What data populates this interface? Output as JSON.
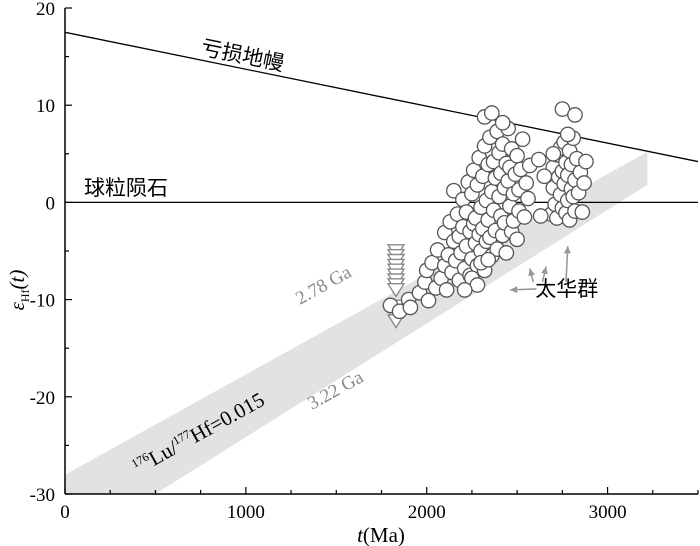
{
  "chart_data": {
    "type": "scatter",
    "xlim": [
      0,
      3500
    ],
    "ylim": [
      -30,
      20
    ],
    "x_ticks": [
      0,
      1000,
      2000,
      3000
    ],
    "y_ticks": [
      -30,
      -20,
      -10,
      0,
      10,
      20
    ],
    "tick_labels_x": [
      "0",
      "1000",
      "2000",
      "3000"
    ],
    "tick_labels_y": [
      "-30",
      "-20",
      "-10",
      "0",
      "10",
      "20"
    ],
    "xlabel": {
      "var": "t",
      "unit": "(Ma)"
    },
    "ylabel": {
      "sym": "ε",
      "sub": "Hf",
      "arg": "(t)"
    },
    "grid": false,
    "reference_lines": [
      {
        "name": "亏损地幔",
        "points": [
          [
            0,
            17.5
          ],
          [
            3500,
            4.2
          ]
        ]
      },
      {
        "name": "球粒陨石",
        "points": [
          [
            0,
            0
          ],
          [
            3500,
            0
          ]
        ]
      }
    ],
    "band": {
      "label_parts": [
        "176",
        "Lu/",
        "177",
        "Hf=0.015"
      ],
      "upper_label": "2.78 Ga",
      "lower_label": "3.22 Ga",
      "upper_edge": [
        [
          0,
          -28.0
        ],
        [
          3220,
          5.2
        ]
      ],
      "lower_edge": [
        [
          500,
          -30.0
        ],
        [
          3220,
          1.8
        ]
      ],
      "color": "#e2e2e2"
    },
    "series": [
      {
        "name": "太华群",
        "marker": "circle",
        "points": [
          [
            1800,
            -10.6
          ],
          [
            1850,
            -11.2
          ],
          [
            1900,
            -10.0
          ],
          [
            1910,
            -10.8
          ],
          [
            1960,
            -9.3
          ],
          [
            1990,
            -8.2
          ],
          [
            2000,
            -7.0
          ],
          [
            2010,
            -10.1
          ],
          [
            2030,
            -6.2
          ],
          [
            2050,
            -8.8
          ],
          [
            2060,
            -4.9
          ],
          [
            2080,
            -7.8
          ],
          [
            2100,
            -3.1
          ],
          [
            2100,
            -6.5
          ],
          [
            2110,
            -9.0
          ],
          [
            2120,
            -5.4
          ],
          [
            2130,
            -2.0
          ],
          [
            2140,
            -7.2
          ],
          [
            2150,
            -4.0
          ],
          [
            2150,
            1.2
          ],
          [
            2160,
            -6.0
          ],
          [
            2170,
            -1.2
          ],
          [
            2180,
            -8.0
          ],
          [
            2180,
            -3.5
          ],
          [
            2190,
            -5.2
          ],
          [
            2200,
            -2.5
          ],
          [
            2200,
            0.3
          ],
          [
            2210,
            -6.8
          ],
          [
            2220,
            -4.5
          ],
          [
            2220,
            -1.0
          ],
          [
            2230,
            2.1
          ],
          [
            2240,
            -3.0
          ],
          [
            2240,
            -7.5
          ],
          [
            2250,
            -5.8
          ],
          [
            2250,
            0.9
          ],
          [
            2260,
            -2.2
          ],
          [
            2260,
            3.3
          ],
          [
            2270,
            -4.2
          ],
          [
            2270,
            -1.6
          ],
          [
            2280,
            -6.5
          ],
          [
            2280,
            1.8
          ],
          [
            2290,
            -3.3
          ],
          [
            2290,
            4.6
          ],
          [
            2300,
            -0.5
          ],
          [
            2300,
            -5.0
          ],
          [
            2310,
            2.7
          ],
          [
            2310,
            -2.7
          ],
          [
            2320,
            5.8
          ],
          [
            2320,
            -7.0
          ],
          [
            2330,
            0.2
          ],
          [
            2330,
            -4.0
          ],
          [
            2340,
            3.9
          ],
          [
            2340,
            -1.8
          ],
          [
            2350,
            6.7
          ],
          [
            2350,
            -3.6
          ],
          [
            2360,
            1.1
          ],
          [
            2360,
            -5.5
          ],
          [
            2370,
            4.2
          ],
          [
            2370,
            -0.8
          ],
          [
            2380,
            -2.9
          ],
          [
            2380,
            2.5
          ],
          [
            2390,
            7.3
          ],
          [
            2390,
            -4.8
          ],
          [
            2400,
            0.6
          ],
          [
            2400,
            5.1
          ],
          [
            2410,
            -1.4
          ],
          [
            2410,
            3.0
          ],
          [
            2420,
            -3.4
          ],
          [
            2420,
            6.0
          ],
          [
            2430,
            1.5
          ],
          [
            2430,
            -2.1
          ],
          [
            2440,
            4.0
          ],
          [
            2440,
            -5.2
          ],
          [
            2450,
            2.2
          ],
          [
            2450,
            7.6
          ],
          [
            2460,
            -0.4
          ],
          [
            2460,
            3.6
          ],
          [
            2470,
            -3.0
          ],
          [
            2470,
            5.5
          ],
          [
            2480,
            0.9
          ],
          [
            2480,
            -1.9
          ],
          [
            2490,
            2.9
          ],
          [
            2500,
            -3.8
          ],
          [
            2500,
            4.8
          ],
          [
            2510,
            1.3
          ],
          [
            2510,
            -0.9
          ],
          [
            2520,
            3.4
          ],
          [
            2530,
            6.5
          ],
          [
            2540,
            -1.5
          ],
          [
            2550,
            2.0
          ],
          [
            2560,
            0.4
          ],
          [
            2570,
            3.8
          ],
          [
            2320,
            8.8
          ],
          [
            2420,
            8.2
          ],
          [
            2360,
            9.2
          ],
          [
            2250,
            -7.8
          ],
          [
            2280,
            -8.5
          ],
          [
            2210,
            -9.0
          ],
          [
            2300,
            -6.2
          ],
          [
            2340,
            -5.9
          ],
          [
            2690,
            -1.2
          ],
          [
            2700,
            1.5
          ],
          [
            2700,
            3.6
          ],
          [
            2710,
            -0.2
          ],
          [
            2720,
            4.9
          ],
          [
            2720,
            -1.6
          ],
          [
            2730,
            2.6
          ],
          [
            2740,
            0.8
          ],
          [
            2740,
            5.6
          ],
          [
            2750,
            -0.6
          ],
          [
            2750,
            3.2
          ],
          [
            2760,
            6.2
          ],
          [
            2760,
            1.9
          ],
          [
            2770,
            -1.1
          ],
          [
            2770,
            4.1
          ],
          [
            2780,
            0.2
          ],
          [
            2780,
            2.8
          ],
          [
            2790,
            5.3
          ],
          [
            2790,
            -1.8
          ],
          [
            2800,
            1.4
          ],
          [
            2800,
            3.9
          ],
          [
            2810,
            0.6
          ],
          [
            2810,
            6.6
          ],
          [
            2820,
            2.3
          ],
          [
            2820,
            -0.9
          ],
          [
            2830,
            4.5
          ],
          [
            2840,
            1.0
          ],
          [
            2850,
            3.1
          ],
          [
            2860,
            -1.0
          ],
          [
            2870,
            2.0
          ],
          [
            2750,
            9.6
          ],
          [
            2820,
            9.0
          ],
          [
            2780,
            7.0
          ],
          [
            2700,
            5.0
          ],
          [
            2880,
            4.2
          ],
          [
            2630,
            -1.4
          ],
          [
            2650,
            2.7
          ],
          [
            2620,
            4.4
          ]
        ]
      },
      {
        "name": "",
        "marker": "triangle-down",
        "points": [
          [
            1830,
            -4.8
          ],
          [
            1830,
            -5.3
          ],
          [
            1830,
            -5.8
          ],
          [
            1830,
            -6.3
          ],
          [
            1830,
            -6.8
          ],
          [
            1830,
            -7.3
          ],
          [
            1830,
            -7.8
          ],
          [
            1830,
            -8.3
          ],
          [
            1830,
            -8.8
          ],
          [
            1830,
            -10.5
          ],
          [
            1830,
            -11.0
          ],
          [
            1830,
            -11.5
          ],
          [
            1830,
            -12.0
          ]
        ]
      }
    ],
    "annotations": [
      {
        "text": "太华群",
        "x": 2600,
        "y": -8.9
      }
    ]
  },
  "styles": {
    "axis_color": "#000000",
    "line_color": "#000000",
    "marker_edge": "#555555",
    "marker_fill": "#ffffff",
    "triangle_edge": "#8a8a8a",
    "arrow_color": "#999999",
    "band_text_color": "#8a8a8a"
  }
}
